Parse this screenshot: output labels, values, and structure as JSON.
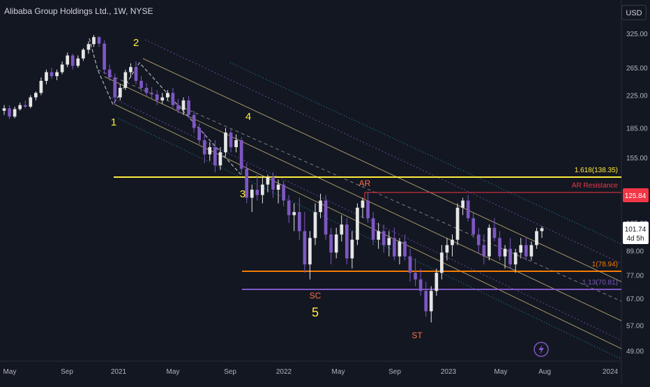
{
  "title": "Alibaba Group Holdings Ltd., 1W, NYSE",
  "currency": "USD",
  "colors": {
    "background": "#131722",
    "up_candle": "#e6e6e6",
    "down_candle": "#7e57c2",
    "fib_1618": "#ffeb3b",
    "fib_1": "#f57c00",
    "fib_113": "#7e57c2",
    "ar_resistance": "#f23645",
    "wave_label": "#ffeb3b",
    "wyckoff_label": "#ff7043"
  },
  "chart_data": {
    "type": "candlestick",
    "price_scale": "log",
    "ylim": [
      45,
      345
    ],
    "y_ticks": [
      "325.00",
      "265.00",
      "225.00",
      "185.00",
      "155.00",
      "125.00",
      "105.00",
      "89.00",
      "77.00",
      "67.00",
      "57.00",
      "49.00"
    ],
    "x_ticks": [
      "May",
      "Sep",
      "2021",
      "May",
      "Sep",
      "2022",
      "May",
      "Sep",
      "2023",
      "May",
      "Aug",
      "2024"
    ],
    "current_price": {
      "value": "101.74",
      "countdown": "4d 5h"
    },
    "ar_resistance": {
      "label": "AR Resistance",
      "value": "125.84"
    },
    "fib_levels": [
      {
        "label": "1.618(138.35)",
        "price": 138.35
      },
      {
        "label": "1(78.94)",
        "price": 78.94
      },
      {
        "label": "1.13(70.81)",
        "price": 70.81
      }
    ],
    "wave_labels": [
      "1",
      "2",
      "3",
      "4",
      "5"
    ],
    "wyckoff_labels": [
      "AR",
      "SC",
      "ST"
    ],
    "candles": [
      [
        205,
        212,
        200,
        208
      ],
      [
        208,
        212,
        195,
        198
      ],
      [
        198,
        210,
        196,
        207
      ],
      [
        207,
        215,
        205,
        212
      ],
      [
        212,
        218,
        208,
        210
      ],
      [
        210,
        225,
        208,
        222
      ],
      [
        222,
        230,
        218,
        228
      ],
      [
        228,
        250,
        225,
        245
      ],
      [
        245,
        262,
        240,
        258
      ],
      [
        258,
        265,
        248,
        252
      ],
      [
        252,
        262,
        246,
        258
      ],
      [
        258,
        275,
        255,
        270
      ],
      [
        270,
        290,
        266,
        285
      ],
      [
        285,
        288,
        262,
        268
      ],
      [
        268,
        285,
        265,
        280
      ],
      [
        280,
        298,
        276,
        295
      ],
      [
        295,
        310,
        288,
        305
      ],
      [
        305,
        322,
        300,
        318
      ],
      [
        318,
        320,
        300,
        306
      ],
      [
        306,
        312,
        255,
        262
      ],
      [
        262,
        270,
        245,
        250
      ],
      [
        250,
        256,
        212,
        222
      ],
      [
        222,
        240,
        218,
        235
      ],
      [
        235,
        262,
        232,
        258
      ],
      [
        258,
        272,
        250,
        266
      ],
      [
        266,
        275,
        240,
        245
      ],
      [
        245,
        252,
        230,
        235
      ],
      [
        235,
        242,
        224,
        228
      ],
      [
        228,
        236,
        220,
        226
      ],
      [
        226,
        232,
        212,
        218
      ],
      [
        218,
        228,
        214,
        222
      ],
      [
        222,
        232,
        218,
        228
      ],
      [
        228,
        235,
        208,
        212
      ],
      [
        212,
        220,
        202,
        206
      ],
      [
        206,
        222,
        200,
        218
      ],
      [
        218,
        224,
        196,
        200
      ],
      [
        200,
        205,
        180,
        185
      ],
      [
        185,
        190,
        168,
        172
      ],
      [
        172,
        180,
        150,
        158
      ],
      [
        158,
        170,
        152,
        165
      ],
      [
        165,
        172,
        142,
        148
      ],
      [
        148,
        165,
        144,
        160
      ],
      [
        160,
        185,
        156,
        180
      ],
      [
        180,
        184,
        160,
        165
      ],
      [
        165,
        178,
        160,
        172
      ],
      [
        172,
        175,
        140,
        145
      ],
      [
        145,
        150,
        118,
        122
      ],
      [
        122,
        132,
        112,
        128
      ],
      [
        128,
        140,
        120,
        124
      ],
      [
        124,
        138,
        118,
        132
      ],
      [
        132,
        140,
        126,
        138
      ],
      [
        138,
        142,
        122,
        128
      ],
      [
        128,
        136,
        118,
        132
      ],
      [
        132,
        135,
        116,
        120
      ],
      [
        120,
        124,
        105,
        110
      ],
      [
        110,
        118,
        100,
        112
      ],
      [
        112,
        122,
        95,
        100
      ],
      [
        100,
        112,
        78,
        82
      ],
      [
        82,
        100,
        75,
        96
      ],
      [
        96,
        118,
        92,
        112
      ],
      [
        112,
        125,
        108,
        120
      ],
      [
        120,
        124,
        95,
        98
      ],
      [
        98,
        102,
        82,
        88
      ],
      [
        88,
        102,
        85,
        98
      ],
      [
        98,
        110,
        94,
        104
      ],
      [
        104,
        108,
        82,
        85
      ],
      [
        85,
        100,
        80,
        95
      ],
      [
        95,
        118,
        92,
        115
      ],
      [
        115,
        122,
        108,
        120
      ],
      [
        120,
        126,
        105,
        108
      ],
      [
        108,
        112,
        92,
        95
      ],
      [
        95,
        105,
        90,
        100
      ],
      [
        100,
        104,
        88,
        92
      ],
      [
        92,
        100,
        86,
        96
      ],
      [
        96,
        102,
        84,
        86
      ],
      [
        86,
        96,
        82,
        94
      ],
      [
        94,
        98,
        84,
        86
      ],
      [
        86,
        90,
        74,
        78
      ],
      [
        78,
        85,
        72,
        75
      ],
      [
        75,
        80,
        68,
        70
      ],
      [
        70,
        74,
        60,
        62
      ],
      [
        62,
        72,
        58,
        70
      ],
      [
        70,
        80,
        68,
        78
      ],
      [
        78,
        92,
        75,
        88
      ],
      [
        88,
        96,
        84,
        92
      ],
      [
        92,
        98,
        86,
        95
      ],
      [
        95,
        118,
        92,
        115
      ],
      [
        115,
        122,
        110,
        120
      ],
      [
        120,
        124,
        106,
        108
      ],
      [
        108,
        112,
        96,
        98
      ],
      [
        98,
        102,
        88,
        92
      ],
      [
        92,
        98,
        82,
        86
      ],
      [
        86,
        104,
        84,
        102
      ],
      [
        102,
        108,
        94,
        96
      ],
      [
        96,
        100,
        84,
        86
      ],
      [
        86,
        92,
        80,
        90
      ],
      [
        90,
        96,
        80,
        82
      ],
      [
        82,
        90,
        78,
        88
      ],
      [
        88,
        96,
        85,
        92
      ],
      [
        92,
        96,
        84,
        86
      ],
      [
        86,
        94,
        84,
        92
      ],
      [
        92,
        102,
        90,
        100
      ],
      [
        100,
        103,
        96,
        101.74
      ]
    ]
  }
}
